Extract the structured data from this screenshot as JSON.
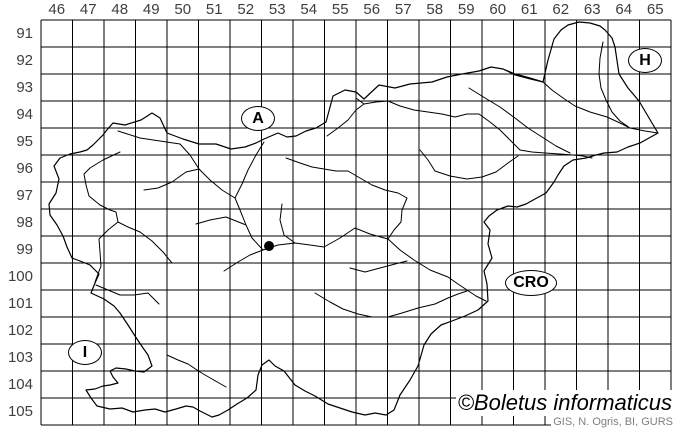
{
  "map": {
    "watermark": "©Boletus informaticus",
    "attribution": "GIS, N. Ogris, BI, GURS",
    "colors": {
      "line": "#000000",
      "grid_label": "#3f3f3f",
      "attribution_text": "#7f7f7f",
      "marker": "#000000",
      "background": "#ffffff"
    },
    "grid": {
      "column_labels": [
        "46",
        "47",
        "48",
        "49",
        "50",
        "51",
        "52",
        "53",
        "54",
        "55",
        "56",
        "57",
        "58",
        "59",
        "60",
        "61",
        "62",
        "63",
        "64",
        "65"
      ],
      "row_labels": [
        "91",
        "92",
        "93",
        "94",
        "95",
        "96",
        "97",
        "98",
        "99",
        "100",
        "101",
        "102",
        "103",
        "104",
        "105"
      ]
    },
    "neighbors": {
      "austria": "A",
      "hungary": "H",
      "croatia": "CRO",
      "italy": "I"
    },
    "marker": {
      "grid_column": 53,
      "grid_row": 99
    }
  }
}
